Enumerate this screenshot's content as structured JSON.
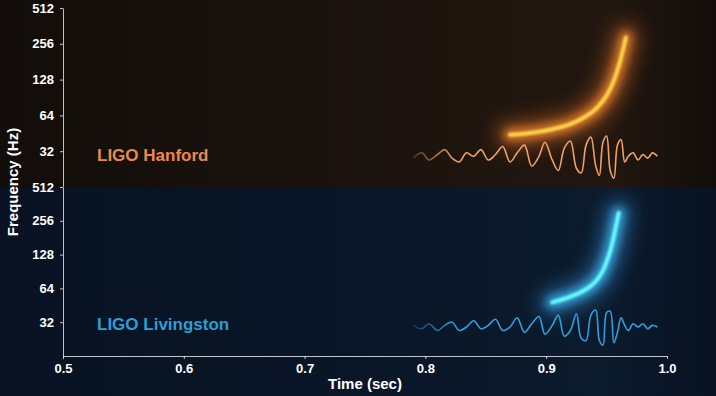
{
  "chart_data": [
    {
      "type": "spectrogram",
      "title": "LIGO Hanford",
      "color": "#e98a4c",
      "y_label": "Frequency (Hz)",
      "xlim": [
        0.5,
        1.0
      ],
      "ylim": [
        16,
        512
      ],
      "log": "y",
      "yticks": [
        32,
        64,
        128,
        256,
        512
      ],
      "tick_labels": "y",
      "series": [
        {
          "type": "chirp",
          "color": "#ff7a2a",
          "x": [
            0.87,
            0.89,
            0.905,
            0.92,
            0.932,
            0.942,
            0.95,
            0.956,
            0.961,
            0.966
          ],
          "values": [
            44,
            46,
            49,
            54,
            62,
            74,
            94,
            125,
            180,
            290
          ]
        },
        {
          "type": "line",
          "color": "#f0a062",
          "x": [
            0.79,
            0.797,
            0.803,
            0.81,
            0.816,
            0.822,
            0.828,
            0.834,
            0.84,
            0.846,
            0.852,
            0.858,
            0.864,
            0.87,
            0.876,
            0.882,
            0.888,
            0.894,
            0.899,
            0.905,
            0.91,
            0.915,
            0.92,
            0.925,
            0.929,
            0.933,
            0.937,
            0.941,
            0.944,
            0.947,
            0.95,
            0.953,
            0.956,
            0.959,
            0.962,
            0.965,
            0.968,
            0.972,
            0.976,
            0.98,
            0.984,
            0.988,
            0.992
          ],
          "values": [
            28,
            31,
            27,
            30,
            33,
            28,
            26,
            31,
            29,
            33,
            27,
            30,
            35,
            26,
            31,
            36,
            24,
            29,
            38,
            27,
            22,
            34,
            39,
            23,
            21,
            36,
            42,
            24,
            20,
            38,
            43,
            22,
            19,
            36,
            40,
            26,
            29,
            31,
            27,
            30,
            28,
            31,
            29
          ]
        }
      ]
    },
    {
      "type": "spectrogram",
      "title": "LIGO Livingston",
      "color": "#2a9fd8",
      "x_label": "Time (sec)",
      "xlim": [
        0.5,
        1.0
      ],
      "ylim": [
        16,
        512
      ],
      "log": "y",
      "yticks": [
        32,
        64,
        128,
        256,
        512
      ],
      "xticks": [
        0.5,
        0.6,
        0.7,
        0.8,
        0.9,
        {
          "value": 1.0,
          "label": "1.0"
        }
      ],
      "series": [
        {
          "type": "chirp",
          "color": "#3aa8ff",
          "x": [
            0.905,
            0.92,
            0.932,
            0.94,
            0.946,
            0.95,
            0.954,
            0.957,
            0.96
          ],
          "values": [
            48,
            54,
            62,
            72,
            88,
            110,
            150,
            210,
            300
          ]
        },
        {
          "type": "line",
          "color": "#2f9fe0",
          "x": [
            0.79,
            0.797,
            0.803,
            0.81,
            0.816,
            0.822,
            0.828,
            0.834,
            0.84,
            0.846,
            0.852,
            0.858,
            0.864,
            0.87,
            0.876,
            0.882,
            0.888,
            0.894,
            0.899,
            0.905,
            0.91,
            0.915,
            0.92,
            0.925,
            0.929,
            0.933,
            0.937,
            0.941,
            0.944,
            0.947,
            0.95,
            0.953,
            0.956,
            0.959,
            0.962,
            0.965,
            0.968,
            0.972,
            0.976,
            0.98,
            0.984,
            0.988,
            0.992
          ],
          "values": [
            30,
            28,
            31,
            27,
            30,
            32,
            27,
            29,
            33,
            28,
            30,
            34,
            27,
            29,
            35,
            26,
            31,
            36,
            25,
            30,
            37,
            24,
            27,
            38,
            23,
            22,
            37,
            41,
            22,
            20,
            39,
            40,
            21,
            26,
            35,
            30,
            27,
            31,
            29,
            31,
            28,
            30,
            29
          ]
        }
      ]
    }
  ]
}
